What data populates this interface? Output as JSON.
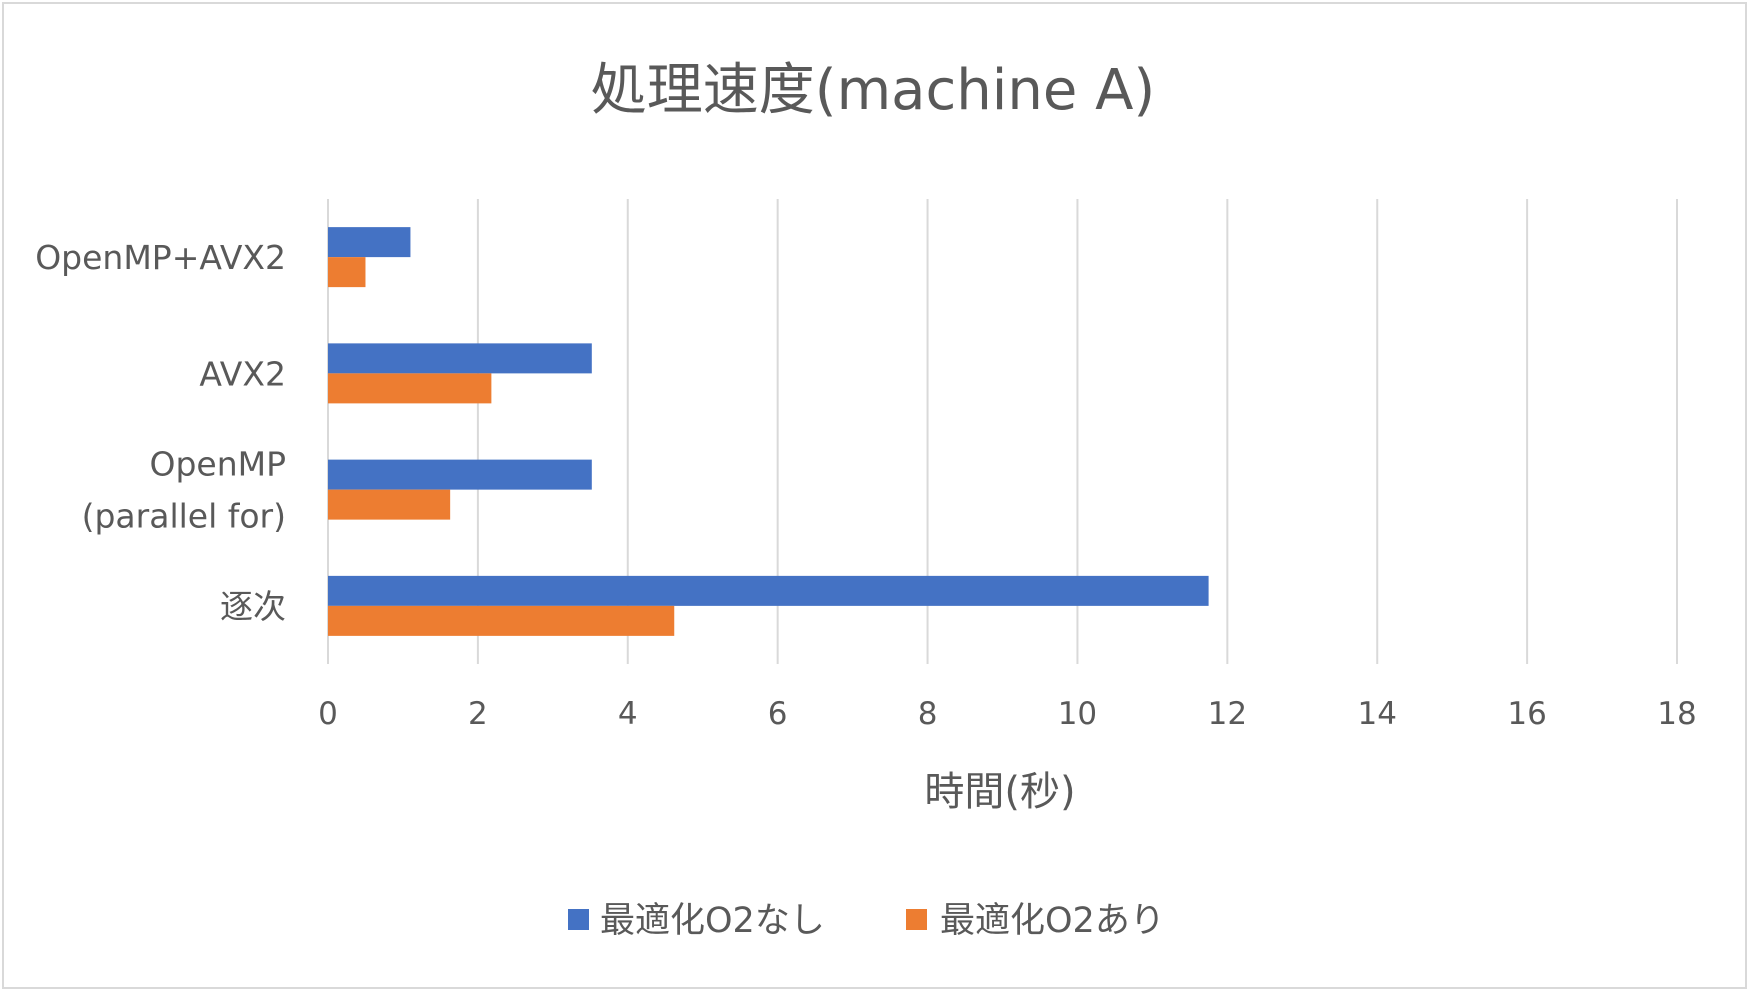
{
  "chart_data": {
    "type": "bar",
    "orientation": "horizontal",
    "title": "処理速度(machine A)",
    "xlabel": "時間(秒)",
    "ylabel": "",
    "xlim": [
      0,
      18
    ],
    "xticks": [
      0,
      2,
      4,
      6,
      8,
      10,
      12,
      14,
      16,
      18
    ],
    "grid": true,
    "legend_position": "bottom",
    "categories": [
      "逐次",
      "OpenMP\n(parallel for)",
      "AVX2",
      "OpenMP+AVX2"
    ],
    "series": [
      {
        "name": "最適化O2なし",
        "color": "#4472c4",
        "values": [
          11.75,
          3.52,
          3.52,
          1.1
        ]
      },
      {
        "name": "最適化O2あり",
        "color": "#ed7d31",
        "values": [
          4.62,
          1.63,
          2.18,
          0.5
        ]
      }
    ]
  }
}
